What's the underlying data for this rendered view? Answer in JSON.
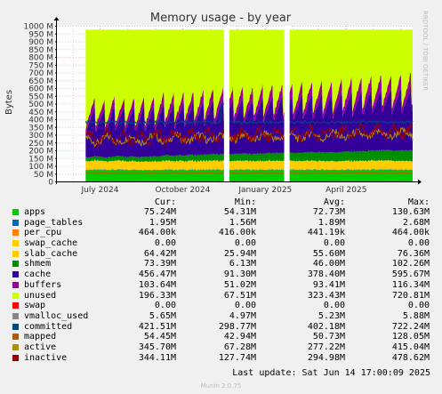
{
  "chart_data": {
    "type": "area",
    "title": "Memory usage - by year",
    "ylabel": "Bytes",
    "side_label": "RRDTOOL / TOBI OETIKER",
    "ylim": [
      0,
      1000
    ],
    "yticks": [
      "0",
      "50 M",
      "100 M",
      "150 M",
      "200 M",
      "250 M",
      "300 M",
      "350 M",
      "400 M",
      "450 M",
      "500 M",
      "550 M",
      "600 M",
      "650 M",
      "700 M",
      "750 M",
      "800 M",
      "850 M",
      "900 M",
      "950 M",
      "1000 M"
    ],
    "ytick_values": [
      0,
      50,
      100,
      150,
      200,
      250,
      300,
      350,
      400,
      450,
      500,
      550,
      600,
      650,
      700,
      750,
      800,
      850,
      900,
      950,
      1000
    ],
    "xticks": [
      "July 2024",
      "October 2024",
      "January 2025",
      "April 2025"
    ],
    "xtick_dates": [
      "2024-07-01",
      "2024-10-01",
      "2025-01-01",
      "2025-04-01"
    ],
    "xlim": [
      "2024-05-14",
      "2025-06-14"
    ],
    "data_start": "2024-06-15",
    "gaps": [
      [
        "2024-11-16",
        "2024-11-22"
      ],
      [
        "2025-01-22",
        "2025-01-28"
      ]
    ],
    "series_colors": {
      "apps": "#00cc00",
      "page_tables": "#0066b3",
      "per_cpu": "#ff8000",
      "swap_cache": "#ffcc00",
      "slab_cache": "#ffcc00",
      "shmem": "#008f00",
      "cache": "#330099",
      "buffers": "#990099",
      "unused": "#ccff00",
      "swap": "#ff0000",
      "vmalloc_used": "#888888",
      "committed": "#00487d",
      "mapped": "#b35a00",
      "active": "#b38f00",
      "inactive": "#990000"
    }
  },
  "legend": {
    "headers": {
      "cur": "Cur:",
      "min": "Min:",
      "avg": "Avg:",
      "max": "Max:"
    },
    "rows": [
      {
        "name": "apps",
        "color": "#00cc00",
        "cur": "75.24M",
        "min": "54.31M",
        "avg": "72.73M",
        "max": "130.63M"
      },
      {
        "name": "page_tables",
        "color": "#0066b3",
        "cur": "1.95M",
        "min": "1.56M",
        "avg": "1.89M",
        "max": "2.68M"
      },
      {
        "name": "per_cpu",
        "color": "#ff8000",
        "cur": "464.00k",
        "min": "416.00k",
        "avg": "441.19k",
        "max": "464.00k"
      },
      {
        "name": "swap_cache",
        "color": "#ffcc00",
        "cur": "0.00",
        "min": "0.00",
        "avg": "0.00",
        "max": "0.00"
      },
      {
        "name": "slab_cache",
        "color": "#ffcc00",
        "cur": "64.42M",
        "min": "25.94M",
        "avg": "55.60M",
        "max": "76.36M"
      },
      {
        "name": "shmem",
        "color": "#008f00",
        "cur": "73.39M",
        "min": "6.13M",
        "avg": "46.00M",
        "max": "102.26M"
      },
      {
        "name": "cache",
        "color": "#330099",
        "cur": "456.47M",
        "min": "91.30M",
        "avg": "378.40M",
        "max": "595.67M"
      },
      {
        "name": "buffers",
        "color": "#990099",
        "cur": "103.64M",
        "min": "51.02M",
        "avg": "93.41M",
        "max": "116.34M"
      },
      {
        "name": "unused",
        "color": "#ccff00",
        "cur": "196.33M",
        "min": "67.51M",
        "avg": "323.43M",
        "max": "720.81M"
      },
      {
        "name": "swap",
        "color": "#ff0000",
        "cur": "0.00",
        "min": "0.00",
        "avg": "0.00",
        "max": "0.00"
      },
      {
        "name": "vmalloc_used",
        "color": "#888888",
        "cur": "5.65M",
        "min": "4.97M",
        "avg": "5.23M",
        "max": "5.88M"
      },
      {
        "name": "committed",
        "color": "#00487d",
        "cur": "421.51M",
        "min": "298.77M",
        "avg": "402.18M",
        "max": "722.24M"
      },
      {
        "name": "mapped",
        "color": "#b35a00",
        "cur": "54.45M",
        "min": "42.94M",
        "avg": "50.73M",
        "max": "128.05M"
      },
      {
        "name": "active",
        "color": "#b38f00",
        "cur": "345.70M",
        "min": "67.28M",
        "avg": "277.22M",
        "max": "415.04M"
      },
      {
        "name": "inactive",
        "color": "#990000",
        "cur": "344.11M",
        "min": "127.74M",
        "avg": "294.98M",
        "max": "478.62M"
      }
    ]
  },
  "footer": {
    "last_update": "Last update: Sat Jun 14 17:00:09 2025",
    "generator": "Munin 2.0.75"
  }
}
